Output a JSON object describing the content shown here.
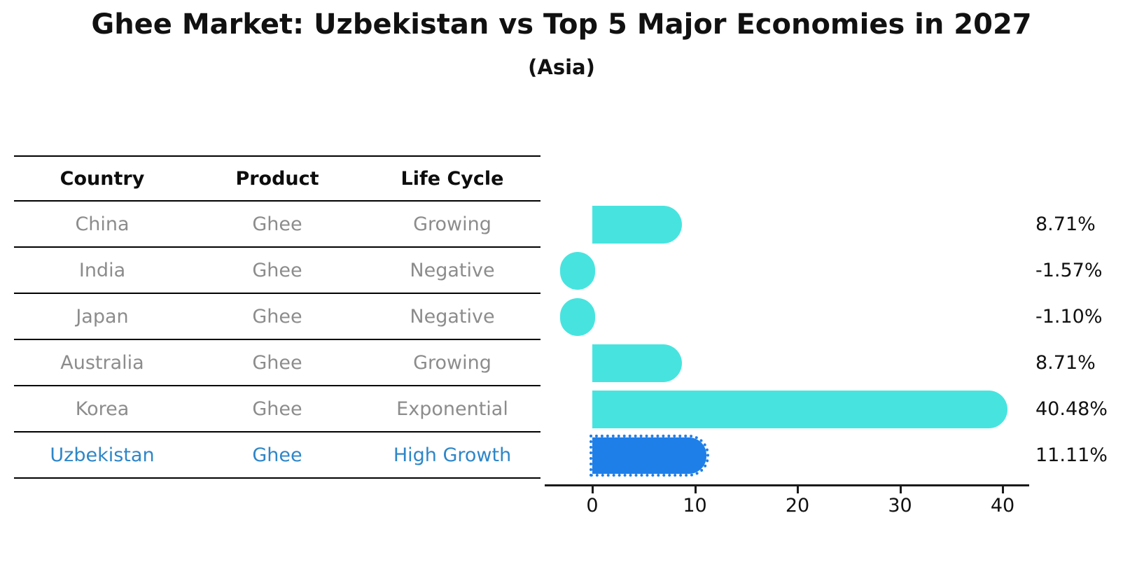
{
  "title": "Ghee Market: Uzbekistan vs Top 5 Major Economies in 2027",
  "subtitle": "(Asia)",
  "table": {
    "headers": [
      "Country",
      "Product",
      "Life Cycle"
    ],
    "rows": [
      {
        "country": "China",
        "product": "Ghee",
        "life_cycle": "Growing",
        "highlight": false
      },
      {
        "country": "India",
        "product": "Ghee",
        "life_cycle": "Negative",
        "highlight": false
      },
      {
        "country": "Japan",
        "product": "Ghee",
        "life_cycle": "Negative",
        "highlight": false
      },
      {
        "country": "Australia",
        "product": "Ghee",
        "life_cycle": "Growing",
        "highlight": false
      },
      {
        "country": "Korea",
        "product": "Ghee",
        "life_cycle": "Exponential",
        "highlight": false
      },
      {
        "country": "Uzbekistan",
        "product": "Ghee",
        "life_cycle": "High Growth",
        "highlight": true
      }
    ]
  },
  "chart_data": {
    "type": "bar",
    "orientation": "horizontal",
    "title": "Ghee Market: Uzbekistan vs Top 5 Major Economies in 2027",
    "subtitle": "(Asia)",
    "categories": [
      "China",
      "India",
      "Japan",
      "Australia",
      "Korea",
      "Uzbekistan"
    ],
    "values": [
      8.71,
      -1.57,
      -1.1,
      8.71,
      40.48,
      11.11
    ],
    "value_labels": [
      "8.71%",
      "-1.57%",
      "-1.10%",
      "8.71%",
      "40.48%",
      "11.11%"
    ],
    "highlight_index": 5,
    "x_ticks": [
      0,
      10,
      20,
      30,
      40
    ],
    "xlim": [
      -4.6,
      42.6
    ],
    "grid": false,
    "legend": "none",
    "xlabel": "",
    "ylabel": ""
  },
  "colors": {
    "bar": "#47E4DF",
    "highlight_bar": "#1F7FE8",
    "highlight_text": "#2E86C8",
    "row_text": "#8C8C8C",
    "axis": "#1a1a1a"
  }
}
